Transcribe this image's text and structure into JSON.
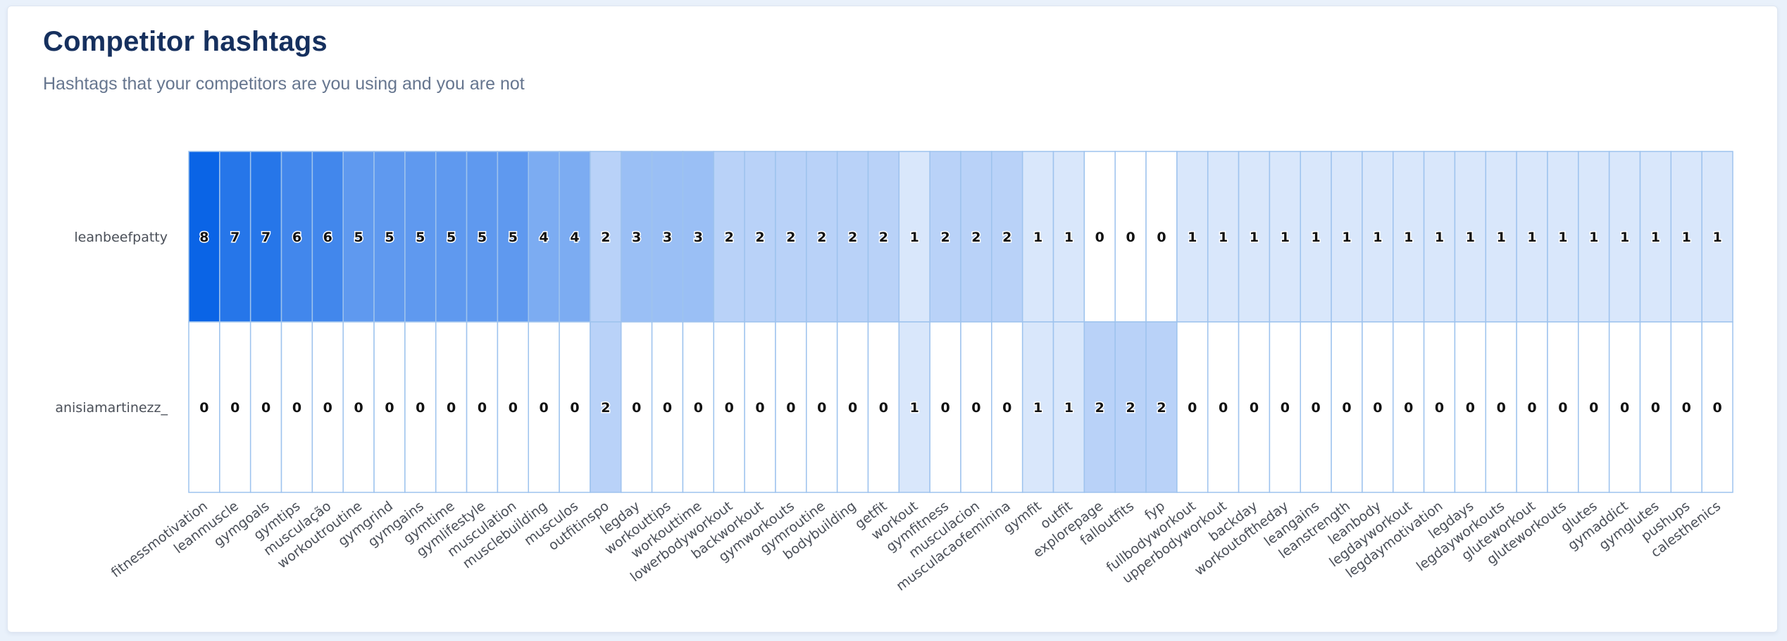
{
  "header": {
    "title": "Competitor hashtags",
    "subtitle": "Hashtags that your competitors are you using and you are not"
  },
  "colors": {
    "background": "#e9f1fb",
    "card": "#ffffff",
    "scale_low": "#ffffff",
    "scale_high": "#0a64e6",
    "cell_border": "#9ec3ee"
  },
  "chart_data": {
    "type": "heatmap",
    "title": "Competitor hashtags",
    "subtitle": "Hashtags that your competitors are you using and you are not",
    "rows": [
      "leanbeefpatty",
      "anisiamartinezz_"
    ],
    "columns": [
      "fitnessmotivation",
      "leanmuscle",
      "gymgoals",
      "gymtips",
      "musculação",
      "workoutroutine",
      "gymgrind",
      "gymgains",
      "gymtime",
      "gymlifestyle",
      "musculation",
      "musclebuilding",
      "musculos",
      "outfitinspo",
      "legday",
      "workouttips",
      "workouttime",
      "lowerbodyworkout",
      "backworkout",
      "gymworkouts",
      "gymroutine",
      "bodybuilding",
      "getfit",
      "workout",
      "gymfitness",
      "musculacion",
      "musculacaofeminina",
      "gymfit",
      "outfit",
      "explorepage",
      "falloutfits",
      "fyp",
      "fullbodyworkout",
      "upperbodyworkout",
      "backday",
      "workoutoftheday",
      "leangains",
      "leanstrength",
      "leanbody",
      "legdayworkout",
      "legdaymotivation",
      "legdays",
      "legdayworkouts",
      "gluteworkout",
      "gluteworkouts",
      "glutes",
      "gymaddict",
      "gymglutes",
      "pushups",
      "calesthenics"
    ],
    "values": [
      [
        8,
        7,
        7,
        6,
        6,
        5,
        5,
        5,
        5,
        5,
        5,
        4,
        4,
        2,
        3,
        3,
        3,
        2,
        2,
        2,
        2,
        2,
        2,
        1,
        2,
        2,
        2,
        1,
        1,
        0,
        0,
        0,
        1,
        1,
        1,
        1,
        1,
        1,
        1,
        1,
        1,
        1,
        1,
        1,
        1,
        1,
        1,
        1,
        1,
        1
      ],
      [
        0,
        0,
        0,
        0,
        0,
        0,
        0,
        0,
        0,
        0,
        0,
        0,
        0,
        2,
        0,
        0,
        0,
        0,
        0,
        0,
        0,
        0,
        0,
        1,
        0,
        0,
        0,
        1,
        1,
        2,
        2,
        2,
        0,
        0,
        0,
        0,
        0,
        0,
        0,
        0,
        0,
        0,
        0,
        0,
        0,
        0,
        0,
        0,
        0,
        0
      ]
    ],
    "color_range": [
      0,
      8
    ],
    "legend": false
  }
}
